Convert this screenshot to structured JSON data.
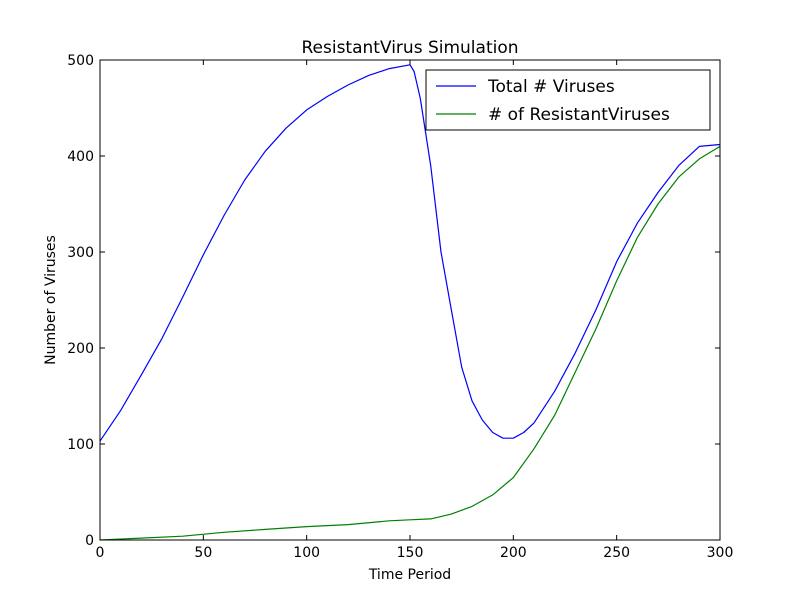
{
  "chart_data": {
    "type": "line",
    "title": "ResistantVirus Simulation",
    "xlabel": "Time Period",
    "ylabel": "Number of Viruses",
    "xlim": [
      0,
      300
    ],
    "ylim": [
      0,
      500
    ],
    "xticks": [
      0,
      50,
      100,
      150,
      200,
      250,
      300
    ],
    "yticks": [
      0,
      100,
      200,
      300,
      400,
      500
    ],
    "xtick_labels": [
      "0",
      "50",
      "100",
      "150",
      "200",
      "250",
      "300"
    ],
    "ytick_labels": [
      "0",
      "100",
      "200",
      "300",
      "400",
      "500"
    ],
    "grid": false,
    "legend_position": "top-right",
    "series": [
      {
        "name": "Total # Viruses",
        "color": "#0000ff",
        "x": [
          0,
          10,
          20,
          30,
          40,
          50,
          60,
          70,
          80,
          90,
          100,
          110,
          120,
          130,
          140,
          150,
          152,
          155,
          160,
          165,
          170,
          175,
          180,
          185,
          190,
          195,
          200,
          205,
          210,
          220,
          230,
          240,
          250,
          260,
          270,
          280,
          290,
          300
        ],
        "y": [
          103,
          135,
          172,
          210,
          253,
          297,
          338,
          375,
          405,
          429,
          448,
          462,
          474,
          484,
          491,
          495,
          488,
          460,
          390,
          300,
          240,
          180,
          145,
          125,
          112,
          106,
          106,
          112,
          122,
          155,
          195,
          240,
          290,
          330,
          362,
          390,
          410,
          412
        ]
      },
      {
        "name": "# of ResistantViruses",
        "color": "#008000",
        "x": [
          0,
          20,
          40,
          60,
          80,
          100,
          120,
          140,
          150,
          160,
          170,
          180,
          190,
          200,
          210,
          220,
          230,
          240,
          250,
          260,
          270,
          280,
          290,
          300
        ],
        "y": [
          0,
          2,
          4,
          8,
          11,
          14,
          16,
          20,
          21,
          22,
          27,
          35,
          47,
          65,
          95,
          130,
          175,
          220,
          270,
          315,
          350,
          378,
          397,
          410
        ]
      }
    ]
  }
}
